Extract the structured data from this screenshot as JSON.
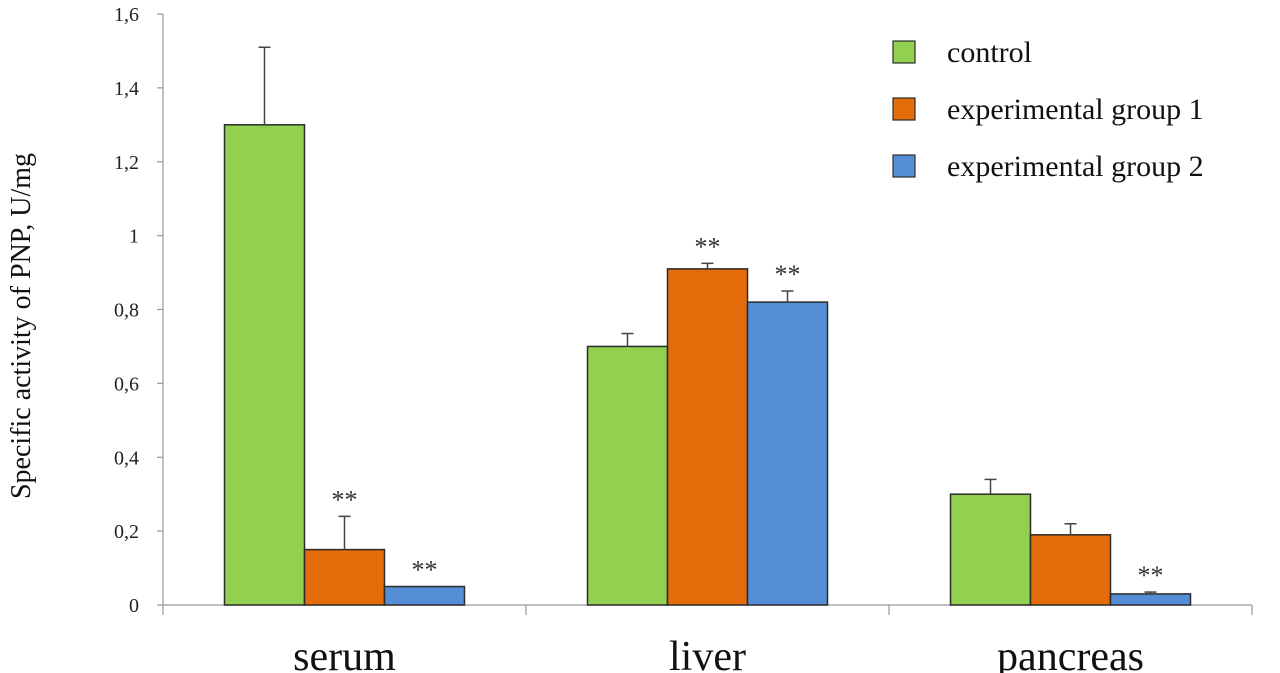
{
  "chart_data": {
    "type": "bar",
    "title": "",
    "xlabel": "",
    "ylabel": "Specific activity of PNP, U/mg",
    "categories": [
      "serum",
      "liver",
      "pancreas"
    ],
    "ylim": [
      0,
      1.6
    ],
    "yticks": [
      {
        "value": 0,
        "label": "0"
      },
      {
        "value": 0.2,
        "label": "0,2"
      },
      {
        "value": 0.4,
        "label": "0,4"
      },
      {
        "value": 0.6,
        "label": "0,6"
      },
      {
        "value": 0.8,
        "label": "0,8"
      },
      {
        "value": 1.0,
        "label": "1"
      },
      {
        "value": 1.2,
        "label": "1,2"
      },
      {
        "value": 1.4,
        "label": "1,4"
      },
      {
        "value": 1.6,
        "label": "1,6"
      }
    ],
    "grid": false,
    "legend_position": "top-right",
    "series": [
      {
        "name": "control",
        "color": "#92d050",
        "values": [
          1.3,
          0.7,
          0.3
        ],
        "errors": [
          0.21,
          0.035,
          0.04
        ],
        "significance": [
          "",
          "",
          ""
        ]
      },
      {
        "name": "experimental group 1",
        "color": "#e46c0a",
        "values": [
          0.15,
          0.91,
          0.19
        ],
        "errors": [
          0.09,
          0.015,
          0.03
        ],
        "significance": [
          "**",
          "**",
          ""
        ]
      },
      {
        "name": "experimental group 2",
        "color": "#558ed5",
        "values": [
          0.05,
          0.82,
          0.03
        ],
        "errors": [
          0.0,
          0.03,
          0.005
        ],
        "significance": [
          "**",
          "**",
          "**"
        ]
      }
    ]
  }
}
